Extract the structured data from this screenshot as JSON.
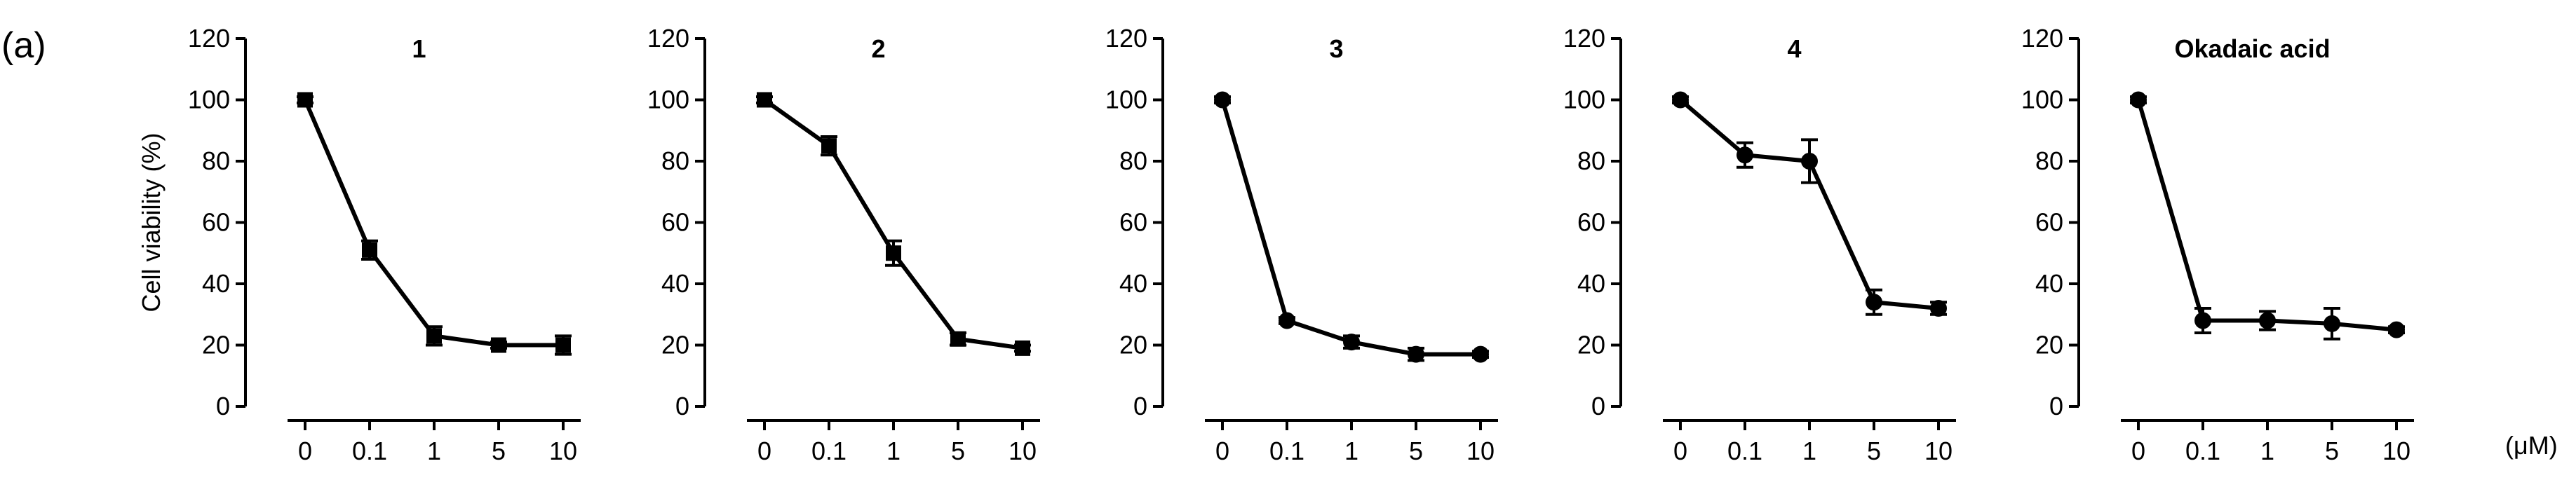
{
  "panel_label": "(a)",
  "unit_label": "(μM)",
  "chart_data": [
    {
      "type": "line",
      "title": "1",
      "xlabel": "",
      "ylabel": "Cell viability (%)",
      "categories": [
        "0",
        "0.1",
        "1",
        "5",
        "10"
      ],
      "values": [
        100,
        51,
        23,
        20,
        20
      ],
      "errors": [
        1,
        3,
        3,
        1,
        3
      ],
      "ylim": [
        0,
        120
      ],
      "yticks": [
        "0",
        "20",
        "40",
        "60",
        "80",
        "100",
        "120"
      ],
      "grid": false,
      "marker": "square"
    },
    {
      "type": "line",
      "title": "2",
      "xlabel": "",
      "ylabel": "",
      "categories": [
        "0",
        "0.1",
        "1",
        "5",
        "10"
      ],
      "values": [
        100,
        85,
        50,
        22,
        19
      ],
      "errors": [
        1,
        3,
        4,
        2,
        1
      ],
      "ylim": [
        0,
        120
      ],
      "yticks": [
        "0",
        "20",
        "40",
        "60",
        "80",
        "100",
        "120"
      ],
      "grid": false,
      "marker": "square"
    },
    {
      "type": "line",
      "title": "3",
      "xlabel": "",
      "ylabel": "",
      "categories": [
        "0",
        "0.1",
        "1",
        "5",
        "10"
      ],
      "values": [
        100,
        28,
        21,
        17,
        17
      ],
      "errors": [
        1,
        1,
        2,
        2,
        1
      ],
      "ylim": [
        0,
        120
      ],
      "yticks": [
        "0",
        "20",
        "40",
        "60",
        "80",
        "100",
        "120"
      ],
      "grid": false,
      "marker": "circle"
    },
    {
      "type": "line",
      "title": "4",
      "xlabel": "",
      "ylabel": "",
      "categories": [
        "0",
        "0.1",
        "1",
        "5",
        "10"
      ],
      "values": [
        100,
        82,
        80,
        34,
        32
      ],
      "errors": [
        1,
        4,
        7,
        4,
        2
      ],
      "ylim": [
        0,
        120
      ],
      "yticks": [
        "0",
        "20",
        "40",
        "60",
        "80",
        "100",
        "120"
      ],
      "grid": false,
      "marker": "circle"
    },
    {
      "type": "line",
      "title": "Okadaic acid",
      "xlabel": "",
      "ylabel": "",
      "categories": [
        "0",
        "0.1",
        "1",
        "5",
        "10"
      ],
      "values": [
        100,
        28,
        28,
        27,
        25
      ],
      "errors": [
        1,
        4,
        3,
        5,
        1
      ],
      "ylim": [
        0,
        120
      ],
      "yticks": [
        "0",
        "20",
        "40",
        "60",
        "80",
        "100",
        "120"
      ],
      "grid": false,
      "marker": "circle"
    }
  ]
}
